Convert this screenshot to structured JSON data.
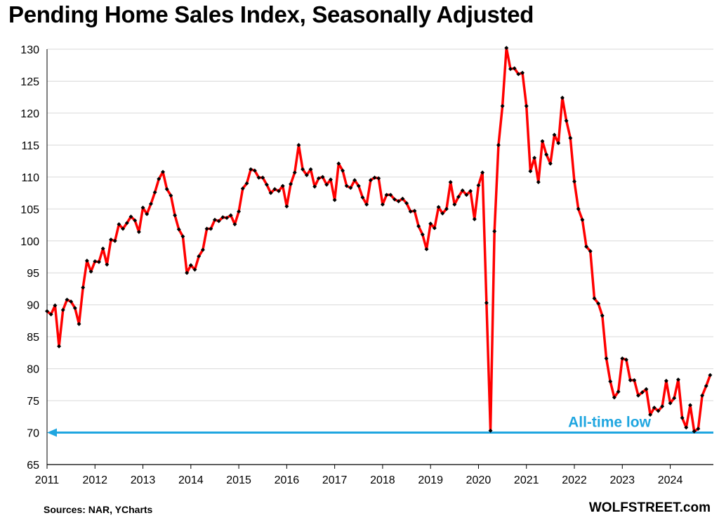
{
  "chart_data": {
    "type": "line",
    "title": "Pending Home Sales Index, Seasonally Adjusted",
    "xlabel": "",
    "ylabel": "",
    "ylim": [
      65,
      130
    ],
    "xlim": [
      2011.0,
      2024.9
    ],
    "yticks": [
      65,
      70,
      75,
      80,
      85,
      90,
      95,
      100,
      105,
      110,
      115,
      120,
      125,
      130
    ],
    "xticks": [
      2011,
      2012,
      2013,
      2014,
      2015,
      2016,
      2017,
      2018,
      2019,
      2020,
      2021,
      2022,
      2023,
      2024
    ],
    "grid": "horizontal",
    "line_color": "#ff0000",
    "marker_color": "#000000",
    "series": [
      {
        "x": [
          2011.0,
          2011.083,
          2011.167,
          2011.25,
          2011.333,
          2011.417,
          2011.5,
          2011.583,
          2011.667,
          2011.75,
          2011.833,
          2011.917,
          2012.0,
          2012.083,
          2012.167,
          2012.25,
          2012.333,
          2012.417,
          2012.5,
          2012.583,
          2012.667,
          2012.75,
          2012.833,
          2012.917,
          2013.0,
          2013.083,
          2013.167,
          2013.25,
          2013.333,
          2013.417,
          2013.5,
          2013.583,
          2013.667,
          2013.75,
          2013.833,
          2013.917,
          2014.0,
          2014.083,
          2014.167,
          2014.25,
          2014.333,
          2014.417,
          2014.5,
          2014.583,
          2014.667,
          2014.75,
          2014.833,
          2014.917,
          2015.0,
          2015.083,
          2015.167,
          2015.25,
          2015.333,
          2015.417,
          2015.5,
          2015.583,
          2015.667,
          2015.75,
          2015.833,
          2015.917,
          2016.0,
          2016.083,
          2016.167,
          2016.25,
          2016.333,
          2016.417,
          2016.5,
          2016.583,
          2016.667,
          2016.75,
          2016.833,
          2016.917,
          2017.0,
          2017.083,
          2017.167,
          2017.25,
          2017.333,
          2017.417,
          2017.5,
          2017.583,
          2017.667,
          2017.75,
          2017.833,
          2017.917,
          2018.0,
          2018.083,
          2018.167,
          2018.25,
          2018.333,
          2018.417,
          2018.5,
          2018.583,
          2018.667,
          2018.75,
          2018.833,
          2018.917,
          2019.0,
          2019.083,
          2019.167,
          2019.25,
          2019.333,
          2019.417,
          2019.5,
          2019.583,
          2019.667,
          2019.75,
          2019.833,
          2019.917,
          2020.0,
          2020.083,
          2020.167,
          2020.25,
          2020.333,
          2020.417,
          2020.5,
          2020.583,
          2020.667,
          2020.75,
          2020.833,
          2020.917,
          2021.0,
          2021.083,
          2021.167,
          2021.25,
          2021.333,
          2021.417,
          2021.5,
          2021.583,
          2021.667,
          2021.75,
          2021.833,
          2021.917,
          2022.0,
          2022.083,
          2022.167,
          2022.25,
          2022.333,
          2022.417,
          2022.5,
          2022.583,
          2022.667,
          2022.75,
          2022.833,
          2022.917,
          2023.0,
          2023.083,
          2023.167,
          2023.25,
          2023.333,
          2023.417,
          2023.5,
          2023.583,
          2023.667,
          2023.75,
          2023.833,
          2023.917,
          2024.0,
          2024.083,
          2024.167,
          2024.25,
          2024.333,
          2024.417,
          2024.5,
          2024.583,
          2024.667,
          2024.75,
          2024.833
        ],
        "values": [
          89.0,
          88.5,
          89.9,
          83.5,
          89.2,
          90.8,
          90.5,
          89.5,
          87.0,
          92.7,
          96.9,
          95.2,
          96.8,
          96.7,
          98.8,
          96.3,
          100.2,
          100.0,
          102.6,
          101.9,
          102.8,
          103.8,
          103.2,
          101.4,
          105.2,
          104.2,
          105.8,
          107.6,
          109.7,
          110.8,
          108.1,
          107.1,
          104.0,
          101.8,
          100.7,
          95.0,
          96.2,
          95.5,
          97.6,
          98.6,
          101.9,
          101.9,
          103.3,
          103.1,
          103.7,
          103.6,
          104.0,
          102.6,
          104.6,
          108.2,
          109.0,
          111.2,
          111.0,
          109.9,
          109.9,
          108.8,
          107.5,
          108.1,
          107.8,
          108.6,
          105.4,
          108.9,
          110.7,
          115.0,
          111.2,
          110.3,
          111.2,
          108.5,
          109.8,
          110.0,
          108.8,
          109.6,
          106.4,
          112.1,
          111.0,
          108.6,
          108.3,
          109.5,
          108.6,
          106.8,
          105.7,
          109.5,
          109.9,
          109.8,
          105.7,
          107.2,
          107.2,
          106.5,
          106.2,
          106.6,
          105.9,
          104.6,
          104.7,
          102.3,
          101.0,
          98.7,
          102.7,
          102.0,
          105.3,
          104.3,
          105.0,
          109.2,
          105.7,
          106.9,
          107.9,
          107.2,
          107.8,
          103.4,
          108.7,
          110.7,
          90.3,
          70.3,
          101.5,
          115.0,
          121.1,
          130.2,
          126.9,
          127.0,
          126.1,
          126.3,
          121.1,
          110.9,
          113.0,
          109.2,
          115.6,
          113.5,
          112.1,
          116.6,
          115.3,
          122.4,
          118.8,
          116.1,
          109.3,
          105.0,
          103.3,
          99.1,
          98.4,
          91.0,
          90.2,
          88.3,
          81.6,
          78.0,
          75.5,
          76.4,
          81.6,
          81.4,
          78.2,
          78.2,
          75.8,
          76.3,
          76.8,
          72.8,
          73.9,
          73.4,
          74.1,
          78.1,
          74.6,
          75.4,
          78.3,
          72.3,
          70.8,
          74.3,
          70.2,
          70.6,
          75.8,
          77.3,
          79.0
        ]
      }
    ],
    "annotations": [
      {
        "text": "All-time low",
        "y": 70,
        "color": "#1fa6e0"
      }
    ]
  },
  "footer": {
    "source": "Sources: NAR, YCharts",
    "credit": "WOLFSTREET.com"
  }
}
